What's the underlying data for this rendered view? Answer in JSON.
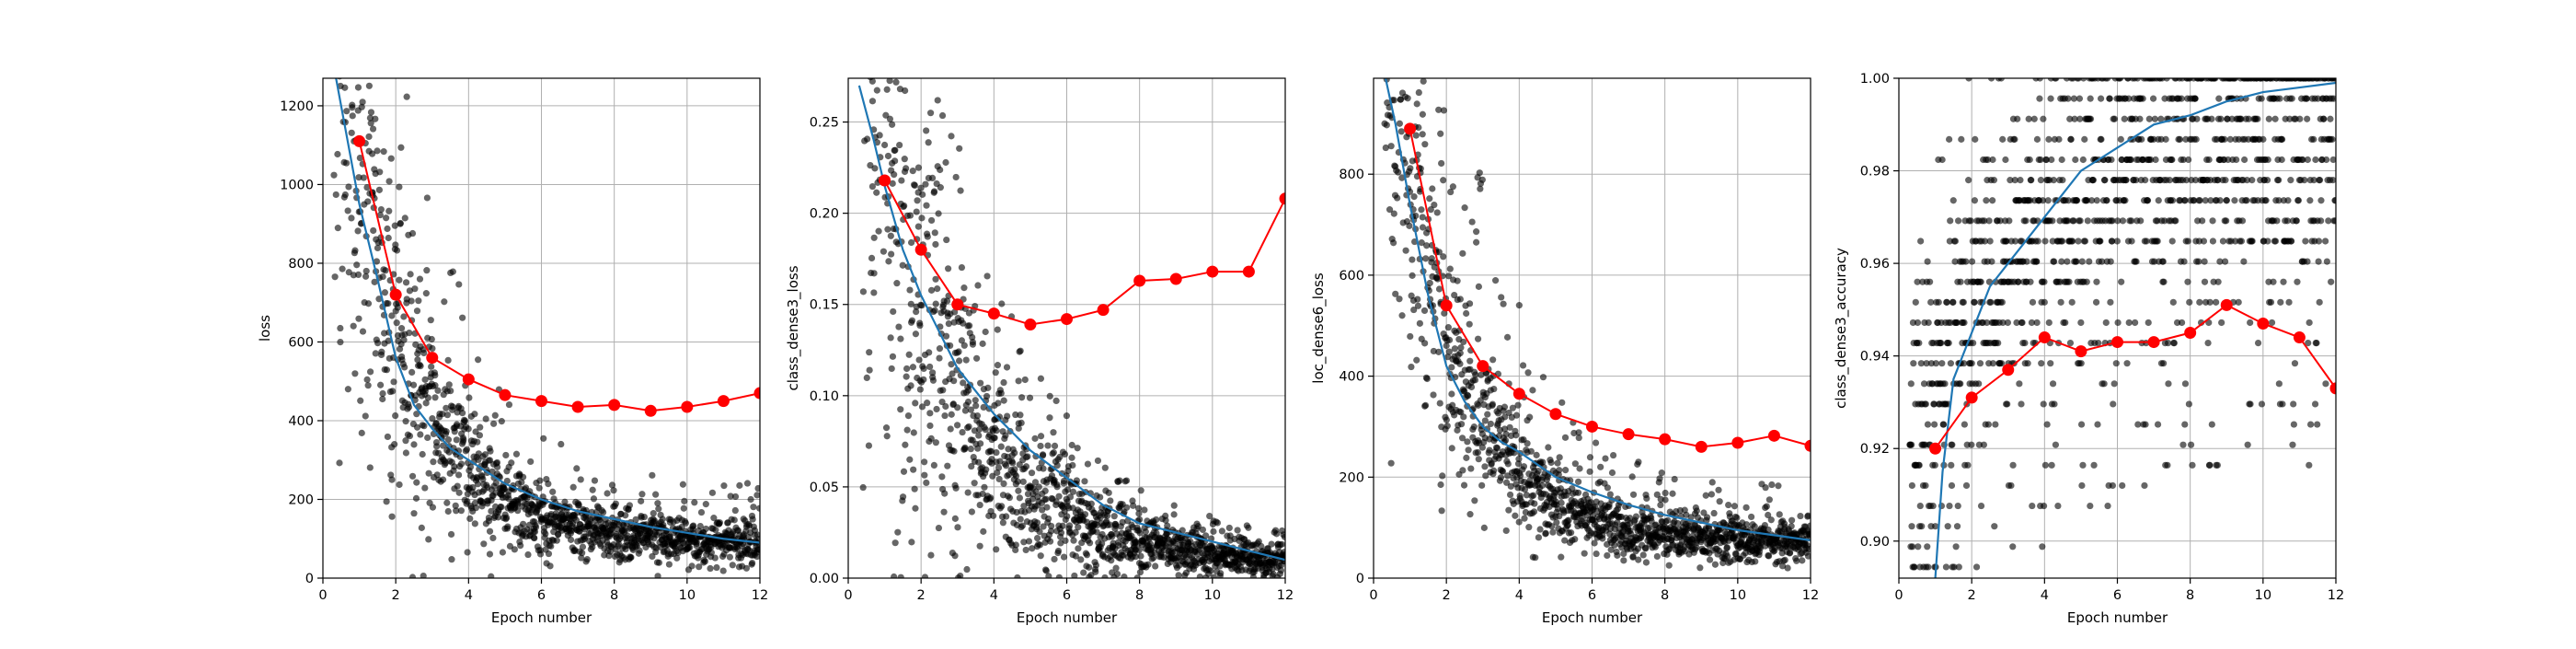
{
  "figure": {
    "background": "#ffffff"
  },
  "colors": {
    "scatter": "#000000",
    "train_line": "#1f77b4",
    "val_line": "#ff0000",
    "grid": "#b0b0b0"
  },
  "chart_data": [
    {
      "type": "line",
      "xlabel": "Epoch number",
      "ylabel": "loss",
      "xlim": [
        0,
        12
      ],
      "ylim": [
        0,
        1270
      ],
      "xticks": [
        "0",
        "2",
        "4",
        "6",
        "8",
        "10",
        "12"
      ],
      "xtick_values": [
        0,
        2,
        4,
        6,
        8,
        10,
        12
      ],
      "yticks": [
        "0",
        "200",
        "400",
        "600",
        "800",
        "1000",
        "1200"
      ],
      "ytick_values": [
        0,
        200,
        400,
        600,
        800,
        1000,
        1200
      ],
      "grid": true,
      "series": [
        {
          "kind": "scatter",
          "description_only": true,
          "color": "#000000",
          "batch_loss_model": {
            "a": 90,
            "b": 1650,
            "c": 0.55,
            "noise": 0.3,
            "x_start": 0.3,
            "count": 1400
          }
        },
        {
          "kind": "line",
          "color": "#1f77b4",
          "x": [
            0.3,
            0.6,
            1,
            1.5,
            2,
            2.5,
            3,
            3.5,
            4,
            5,
            6,
            7,
            8,
            9,
            10,
            11,
            12
          ],
          "y": [
            1300,
            1150,
            950,
            760,
            560,
            440,
            380,
            330,
            300,
            240,
            200,
            170,
            150,
            130,
            115,
            100,
            90
          ]
        },
        {
          "kind": "line-markers",
          "color": "#ff0000",
          "x": [
            1,
            2,
            3,
            4,
            5,
            6,
            7,
            8,
            9,
            10,
            11,
            12
          ],
          "y": [
            1110,
            720,
            560,
            505,
            465,
            450,
            435,
            440,
            425,
            435,
            450,
            470
          ]
        }
      ]
    },
    {
      "type": "line",
      "xlabel": "Epoch number",
      "ylabel": "class_dense3_loss",
      "xlim": [
        0,
        12
      ],
      "ylim": [
        0,
        0.274
      ],
      "xticks": [
        "0",
        "2",
        "4",
        "6",
        "8",
        "10",
        "12"
      ],
      "xtick_values": [
        0,
        2,
        4,
        6,
        8,
        10,
        12
      ],
      "yticks": [
        "0.00",
        "0.05",
        "0.10",
        "0.15",
        "0.20",
        "0.25"
      ],
      "ytick_values": [
        0,
        0.05,
        0.1,
        0.15,
        0.2,
        0.25
      ],
      "grid": true,
      "series": [
        {
          "kind": "scatter",
          "description_only": true,
          "color": "#000000",
          "batch_loss_model": {
            "a": 0.008,
            "b": 0.33,
            "c": 0.42,
            "noise": 0.45,
            "x_start": 0.3,
            "count": 1400
          }
        },
        {
          "kind": "line",
          "color": "#1f77b4",
          "x": [
            0.3,
            0.7,
            1,
            1.5,
            2,
            3,
            4,
            5,
            6,
            7,
            8,
            9,
            10,
            11,
            12
          ],
          "y": [
            0.27,
            0.24,
            0.215,
            0.18,
            0.155,
            0.115,
            0.09,
            0.07,
            0.055,
            0.04,
            0.03,
            0.025,
            0.02,
            0.015,
            0.01
          ]
        },
        {
          "kind": "line-markers",
          "color": "#ff0000",
          "x": [
            1,
            2,
            3,
            4,
            5,
            6,
            7,
            8,
            9,
            10,
            11,
            12
          ],
          "y": [
            0.218,
            0.18,
            0.15,
            0.145,
            0.139,
            0.142,
            0.147,
            0.163,
            0.164,
            0.168,
            0.168,
            0.208
          ]
        }
      ]
    },
    {
      "type": "line",
      "xlabel": "Epoch number",
      "ylabel": "loc_dense6_loss",
      "xlim": [
        0,
        12
      ],
      "ylim": [
        0,
        990
      ],
      "xticks": [
        "0",
        "2",
        "4",
        "6",
        "8",
        "10",
        "12"
      ],
      "xtick_values": [
        0,
        2,
        4,
        6,
        8,
        10,
        12
      ],
      "yticks": [
        "0",
        "200",
        "400",
        "600",
        "800"
      ],
      "ytick_values": [
        0,
        200,
        400,
        600,
        800
      ],
      "grid": true,
      "series": [
        {
          "kind": "scatter",
          "description_only": true,
          "color": "#000000",
          "batch_loss_model": {
            "a": 70,
            "b": 1250,
            "c": 0.55,
            "noise": 0.28,
            "x_start": 0.3,
            "count": 1400
          }
        },
        {
          "kind": "line",
          "color": "#1f77b4",
          "x": [
            0.3,
            0.6,
            1,
            1.5,
            2,
            2.5,
            3,
            3.5,
            4,
            5,
            6,
            7,
            8,
            9,
            10,
            11,
            12
          ],
          "y": [
            1000,
            900,
            740,
            560,
            420,
            350,
            300,
            270,
            250,
            200,
            170,
            145,
            125,
            110,
            95,
            85,
            75
          ]
        },
        {
          "kind": "line-markers",
          "color": "#ff0000",
          "x": [
            1,
            2,
            3,
            4,
            5,
            6,
            7,
            8,
            9,
            10,
            11,
            12
          ],
          "y": [
            890,
            540,
            420,
            365,
            325,
            300,
            285,
            275,
            260,
            268,
            282,
            262
          ]
        }
      ]
    },
    {
      "type": "line",
      "xlabel": "Epoch number",
      "ylabel": "class_dense3_accuracy",
      "xlim": [
        0,
        12
      ],
      "ylim": [
        0.892,
        1.0
      ],
      "xticks": [
        "0",
        "2",
        "4",
        "6",
        "8",
        "10",
        "12"
      ],
      "xtick_values": [
        0,
        2,
        4,
        6,
        8,
        10,
        12
      ],
      "yticks": [
        "0.90",
        "0.92",
        "0.94",
        "0.96",
        "0.98",
        "1.00"
      ],
      "ytick_values": [
        0.9,
        0.92,
        0.94,
        0.96,
        0.98,
        1.0
      ],
      "grid": true,
      "series": [
        {
          "kind": "scatter",
          "description_only": true,
          "color": "#000000",
          "batch_accuracy_levels": [
            1.0,
            0.9956,
            0.9912,
            0.9868,
            0.9824,
            0.978,
            0.9736,
            0.9692,
            0.9648,
            0.9604,
            0.956,
            0.9516,
            0.9472,
            0.9428,
            0.9384,
            0.934,
            0.9296,
            0.9252,
            0.9208,
            0.9164,
            0.912,
            0.9076,
            0.9032,
            0.8988,
            0.8944
          ]
        },
        {
          "kind": "line",
          "color": "#1f77b4",
          "x": [
            1,
            1.2,
            1.5,
            2,
            2.5,
            3,
            3.5,
            4,
            5,
            6,
            7,
            8,
            9,
            10,
            11,
            12
          ],
          "y": [
            0.892,
            0.915,
            0.935,
            0.945,
            0.955,
            0.96,
            0.965,
            0.97,
            0.98,
            0.985,
            0.99,
            0.992,
            0.995,
            0.997,
            0.998,
            0.999
          ]
        },
        {
          "kind": "line-markers",
          "color": "#ff0000",
          "x": [
            1,
            2,
            3,
            4,
            5,
            6,
            7,
            8,
            9,
            10,
            11,
            12
          ],
          "y": [
            0.92,
            0.931,
            0.937,
            0.944,
            0.941,
            0.943,
            0.943,
            0.945,
            0.951,
            0.947,
            0.944,
            0.933
          ]
        }
      ]
    }
  ]
}
